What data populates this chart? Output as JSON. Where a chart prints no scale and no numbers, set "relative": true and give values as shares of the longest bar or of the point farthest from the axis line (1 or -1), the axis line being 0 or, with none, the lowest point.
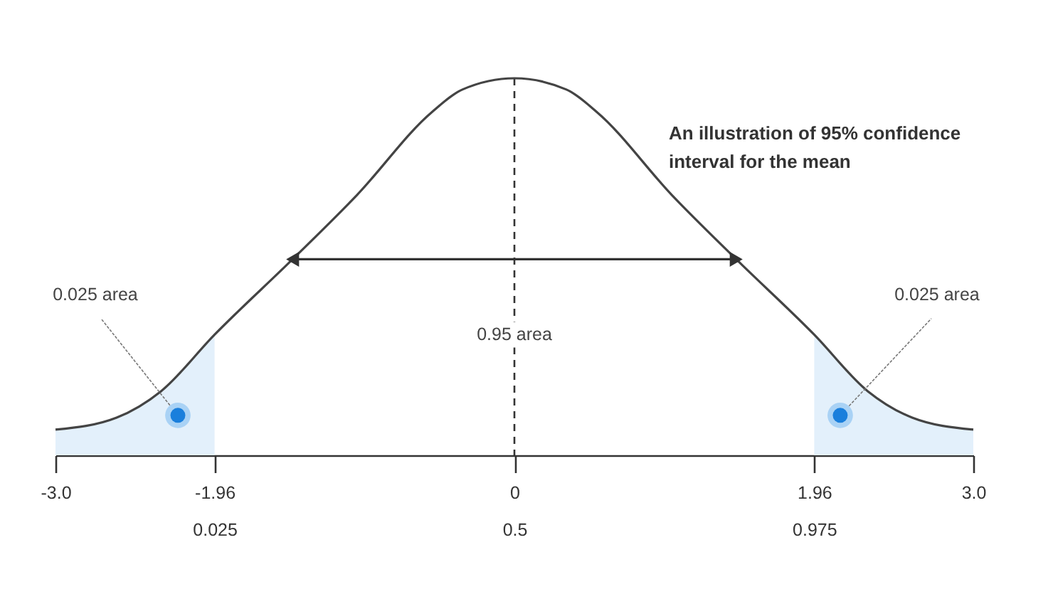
{
  "chart_data": {
    "type": "line",
    "title": "An illustration of 95% confidence interval for the mean",
    "relative": true,
    "xlim": [
      -3,
      3
    ],
    "xticks": [
      {
        "value": -3,
        "label": "-3.0"
      },
      {
        "value": -1.96,
        "label": "-1.96\n0.025"
      },
      {
        "value": 0,
        "label": "0\n0.5"
      },
      {
        "value": 1.96,
        "label": "1.96\n0.975"
      },
      {
        "value": 3,
        "label": "3.0"
      }
    ],
    "tick_labels": "x",
    "grid": false,
    "series": [
      {
        "type": "area",
        "color": "#e3f0fb",
        "x": [
          -3,
          -2.6,
          -2.31,
          -1.96
        ],
        "values": [
          0.068,
          0.1,
          0.17,
          0.32
        ]
      },
      {
        "type": "area",
        "color": "#e3f0fb",
        "x": [
          1.96,
          2.31,
          2.6,
          3
        ],
        "values": [
          0.32,
          0.17,
          0.1,
          0.068
        ]
      },
      {
        "type": "line",
        "color": "#444444",
        "x": [
          -3,
          -2.6,
          -2.31,
          -1.96,
          -1.45,
          -1.03,
          -0.54,
          -0.34,
          0,
          0.34,
          0.54,
          1.03,
          1.45,
          1.96,
          2.31,
          2.6,
          3
        ],
        "values": [
          0.068,
          0.1,
          0.17,
          0.32,
          0.52,
          0.69,
          0.91,
          0.97,
          1,
          0.97,
          0.91,
          0.69,
          0.52,
          0.32,
          0.17,
          0.1,
          0.068
        ]
      },
      {
        "type": "line",
        "color": "#333333",
        "marker": "triangle",
        "x": [
          -1.45,
          1.45
        ],
        "values": [
          0.52,
          0.52
        ]
      }
    ],
    "ref_lines": [
      {
        "axis": "x",
        "value": 0,
        "line_style": "dashed",
        "color": "#333333"
      }
    ],
    "annotations": [
      {
        "text": "0.025 area",
        "x": -2.2,
        "y": 0.106
      },
      {
        "text": "0.95 area",
        "x": 0,
        "y": 0.32
      },
      {
        "text": "0.025 area",
        "x": 2.13,
        "y": 0.106
      }
    ]
  }
}
